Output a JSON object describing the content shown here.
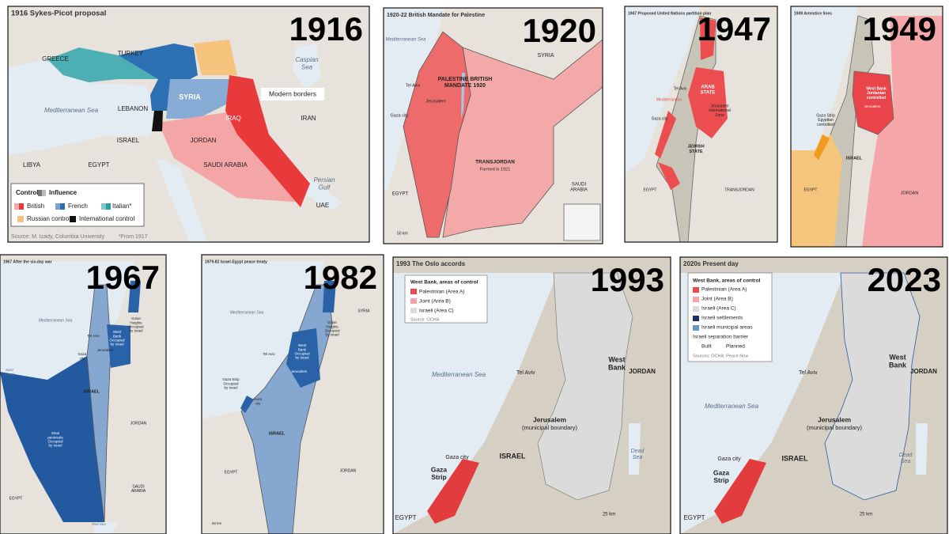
{
  "panels": [
    {
      "year": "1916",
      "title": "1916 Sykes-Picot proposal",
      "labels": [
        "GREECE",
        "TURKEY",
        [
          "Caspian",
          "Sea"
        ],
        "SYRIA",
        "Modern borders",
        "LEBANON",
        "Mediterranean Sea",
        "IRAN",
        "IRAQ",
        "ISRAEL",
        "JORDAN",
        "LIBYA",
        "EGYPT",
        "SAUDI ARABIA",
        [
          "Persian",
          "Gulf"
        ],
        "UAE",
        "Control",
        "Influence",
        "British",
        "French",
        "Italian*",
        "Russian control",
        "International control",
        "Source: M. Izady, Columbia University",
        "*From 1917"
      ]
    },
    {
      "year": "1920",
      "title": "1920-22 British Mandate for Palestine",
      "labels": [
        "Mediterranean Sea",
        "SYRIA",
        "Tel Aviv",
        [
          "PALESTINE BRITISH",
          "MANDATE 1920"
        ],
        "Jerusalem",
        "Gaza city",
        "TRANSJORDAN",
        "Formed in 1921",
        "EGYPT",
        [
          "SAUDI",
          "ARABIA"
        ],
        "50 km"
      ]
    },
    {
      "year": "1947",
      "title": "1947 Proposed United Nations partition plan",
      "labels": [
        "Mediterranean",
        [
          "ARAB",
          "STATE"
        ],
        [
          "Jerusalem",
          "International",
          "Zone"
        ],
        [
          "JEWISH",
          "STATE"
        ],
        "Tel Aviv",
        "Gaza city",
        "EGYPT",
        "TRANSJORDAN"
      ]
    },
    {
      "year": "1949",
      "title": "1949 Armistice lines",
      "labels": [
        [
          "West Bank",
          "Jordanian",
          "controlled"
        ],
        "Jerusalem",
        [
          "Gaza Strip",
          "Egyptian",
          "controlled"
        ],
        "ISRAEL",
        "EGYPT",
        "JORDAN"
      ]
    },
    {
      "year": "1967",
      "title": "1967 After the six-day war",
      "labels": [
        "Mediterranean Sea",
        [
          "Golan",
          "Heights",
          "Occupied",
          "by Israel"
        ],
        [
          "West",
          "Bank",
          "Occupied",
          "by Israel"
        ],
        "Tel Aviv",
        [
          "Gaza",
          "city"
        ],
        "Jerusalem",
        "ISRAEL",
        [
          "Sinai",
          "peninsula",
          "Occupied",
          "by Israel"
        ],
        "JORDAN",
        "EGYPT",
        [
          "SAUDI",
          "ARABIA"
        ],
        [
          "Suez",
          "Canal"
        ],
        "Red Sea"
      ]
    },
    {
      "year": "1982",
      "title": "1979-82 Israel-Egypt peace treaty",
      "labels": [
        "Mediterranean Sea",
        "SYRIA",
        [
          "Golan",
          "Heights",
          "Occupied",
          "by Israel"
        ],
        [
          "West",
          "Bank",
          "Occupied",
          "by Israel"
        ],
        "Tel Aviv",
        "Jerusalem",
        [
          "Gaza Strip",
          "Occupied",
          "by Israel"
        ],
        [
          "Gaza",
          "city"
        ],
        "ISRAEL",
        "EGYPT",
        "JORDAN",
        "50 km"
      ]
    },
    {
      "year": "1993",
      "title": "1993 The Oslo accords",
      "labels": [
        "West Bank, areas of control",
        "Palestinian (Area A)",
        "Joint (Area B)",
        "Israeli (Area C)",
        "Source: OCHA",
        "Tel Aviv",
        [
          "West",
          "Bank"
        ],
        "JORDAN",
        "Mediterranean Sea",
        "Jerusalem",
        "(municipal boundary)",
        [
          "Dead",
          "Sea"
        ],
        "ISRAEL",
        "Gaza city",
        [
          "Gaza",
          "Strip"
        ],
        "EGYPT",
        "25 km"
      ]
    },
    {
      "year": "2023",
      "title": "2020s Present day",
      "labels": [
        "West Bank, areas of control",
        "Palestinian (Area A)",
        "Joint (Area B)",
        "Israeli (Area C)",
        "Israeli settlements",
        "Israeli municipal areas",
        "Israeli separation barrier",
        "Built",
        "Planned",
        "Sources: OCHA; Peace Now",
        "Tel Aviv",
        [
          "West",
          "Bank"
        ],
        "JORDAN",
        "Mediterranean Sea",
        "Jerusalem",
        "(municipal boundary)",
        [
          "Dead",
          "Sea"
        ],
        "Gaza city",
        "ISRAEL",
        [
          "Gaza",
          "Strip"
        ],
        "EGYPT",
        "25 km"
      ]
    }
  ]
}
